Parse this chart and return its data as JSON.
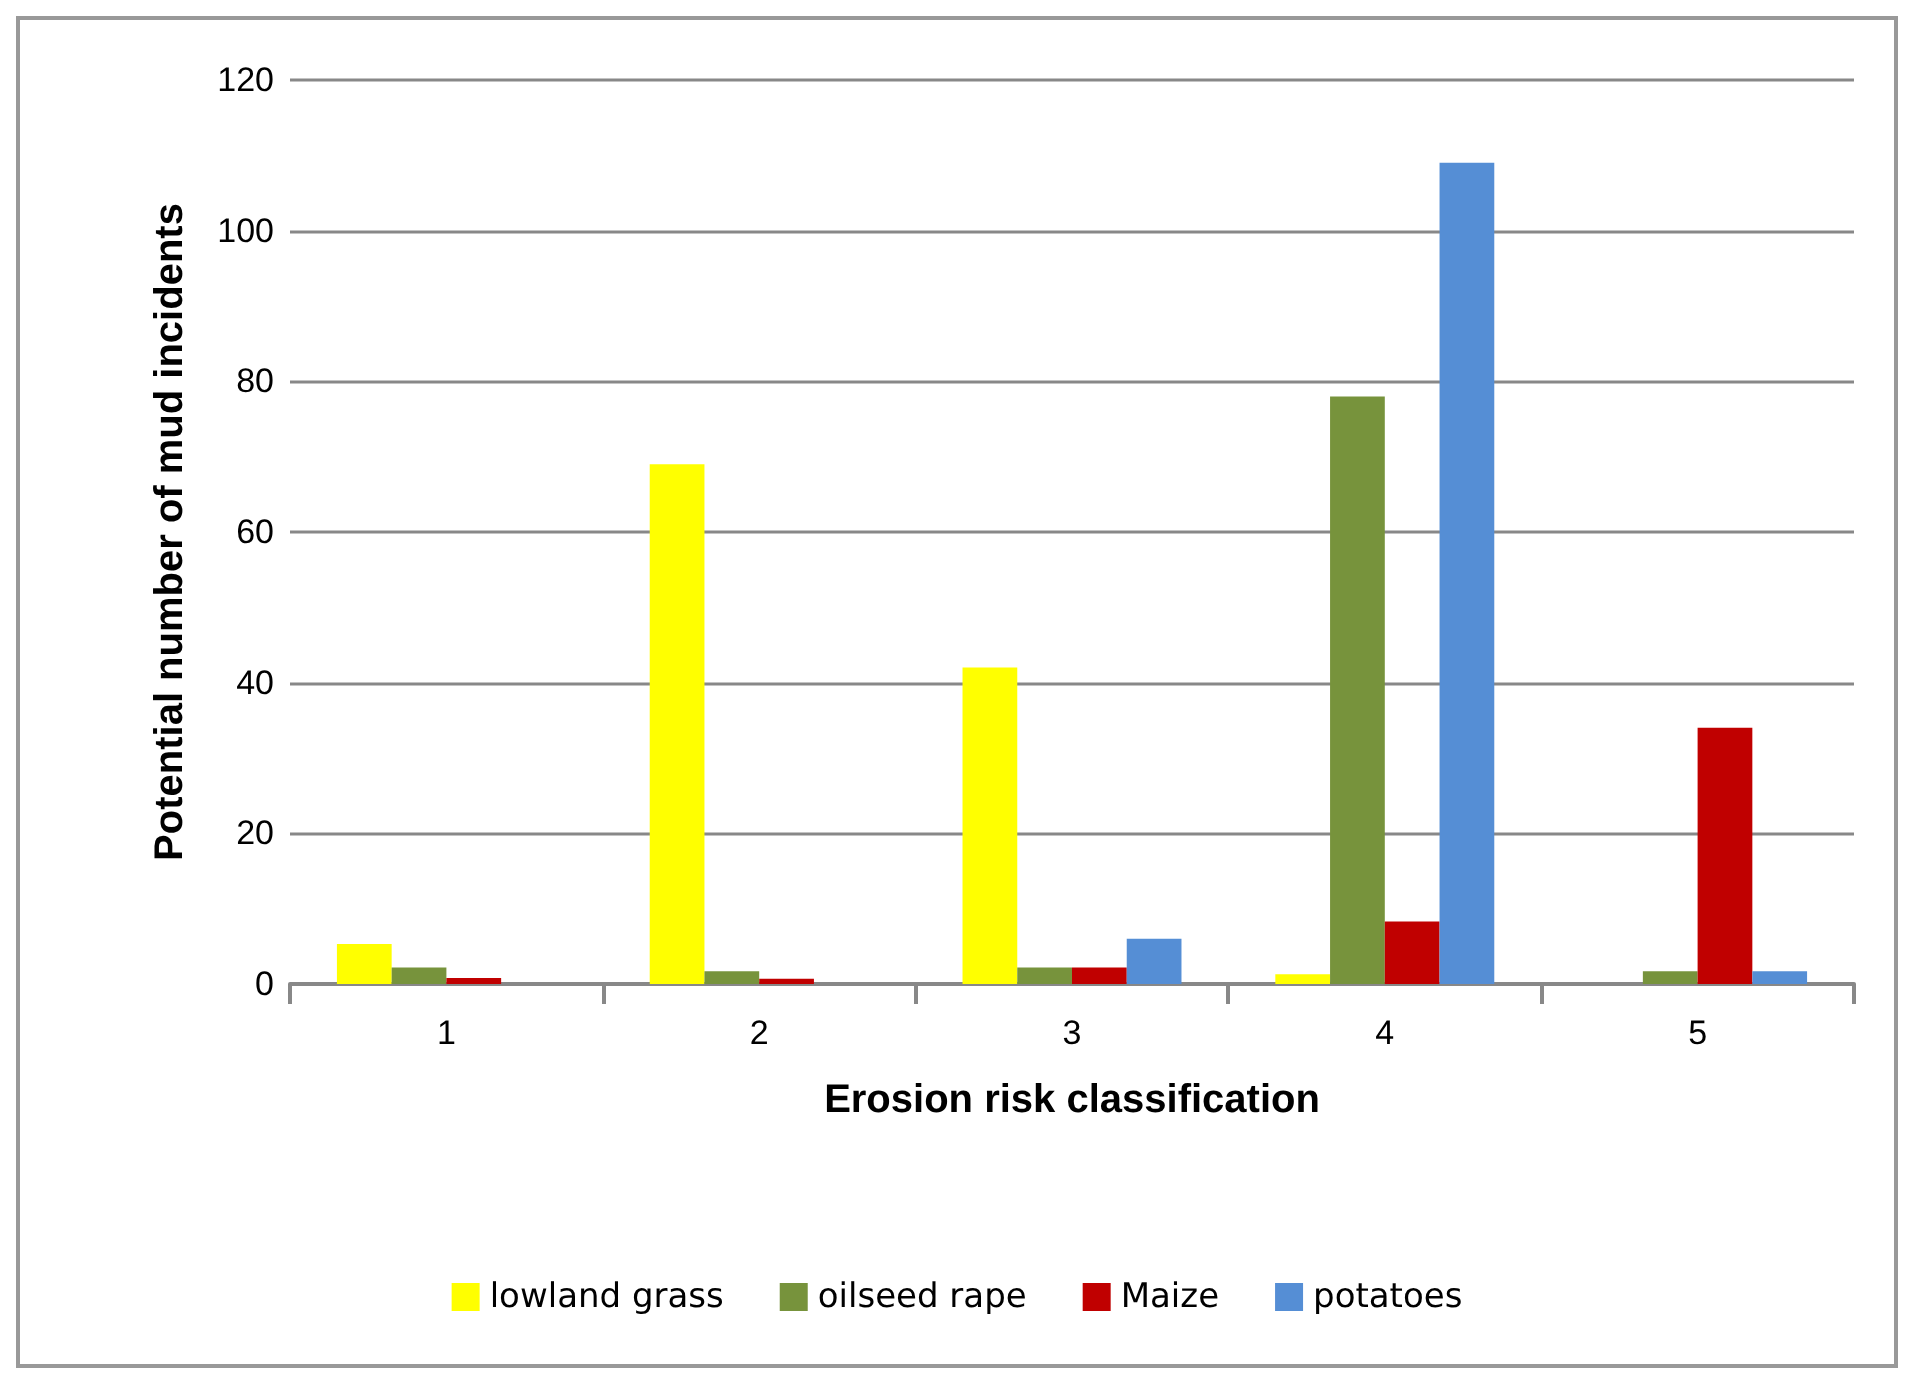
{
  "chart_data": {
    "type": "bar",
    "xlabel": "Erosion risk classification",
    "ylabel": "Potential number of mud incidents",
    "categories": [
      "1",
      "2",
      "3",
      "4",
      "5"
    ],
    "series": [
      {
        "name": "lowland grass",
        "color": "#ffff00",
        "values": [
          5.3,
          69,
          42,
          1.3,
          0
        ]
      },
      {
        "name": "oilseed rape",
        "color": "#77933c",
        "values": [
          2.2,
          1.7,
          2.2,
          78,
          1.7
        ]
      },
      {
        "name": "Maize",
        "color": "#c00000",
        "values": [
          0.8,
          0.7,
          2.2,
          8.3,
          34
        ]
      },
      {
        "name": "potatoes",
        "color": "#558ed5",
        "values": [
          0,
          0,
          6,
          109,
          1.7
        ]
      }
    ],
    "ylim": [
      0,
      120
    ],
    "yticks": [
      0,
      20,
      40,
      60,
      80,
      100,
      120
    ],
    "grid": "y",
    "legend": "bottom"
  }
}
